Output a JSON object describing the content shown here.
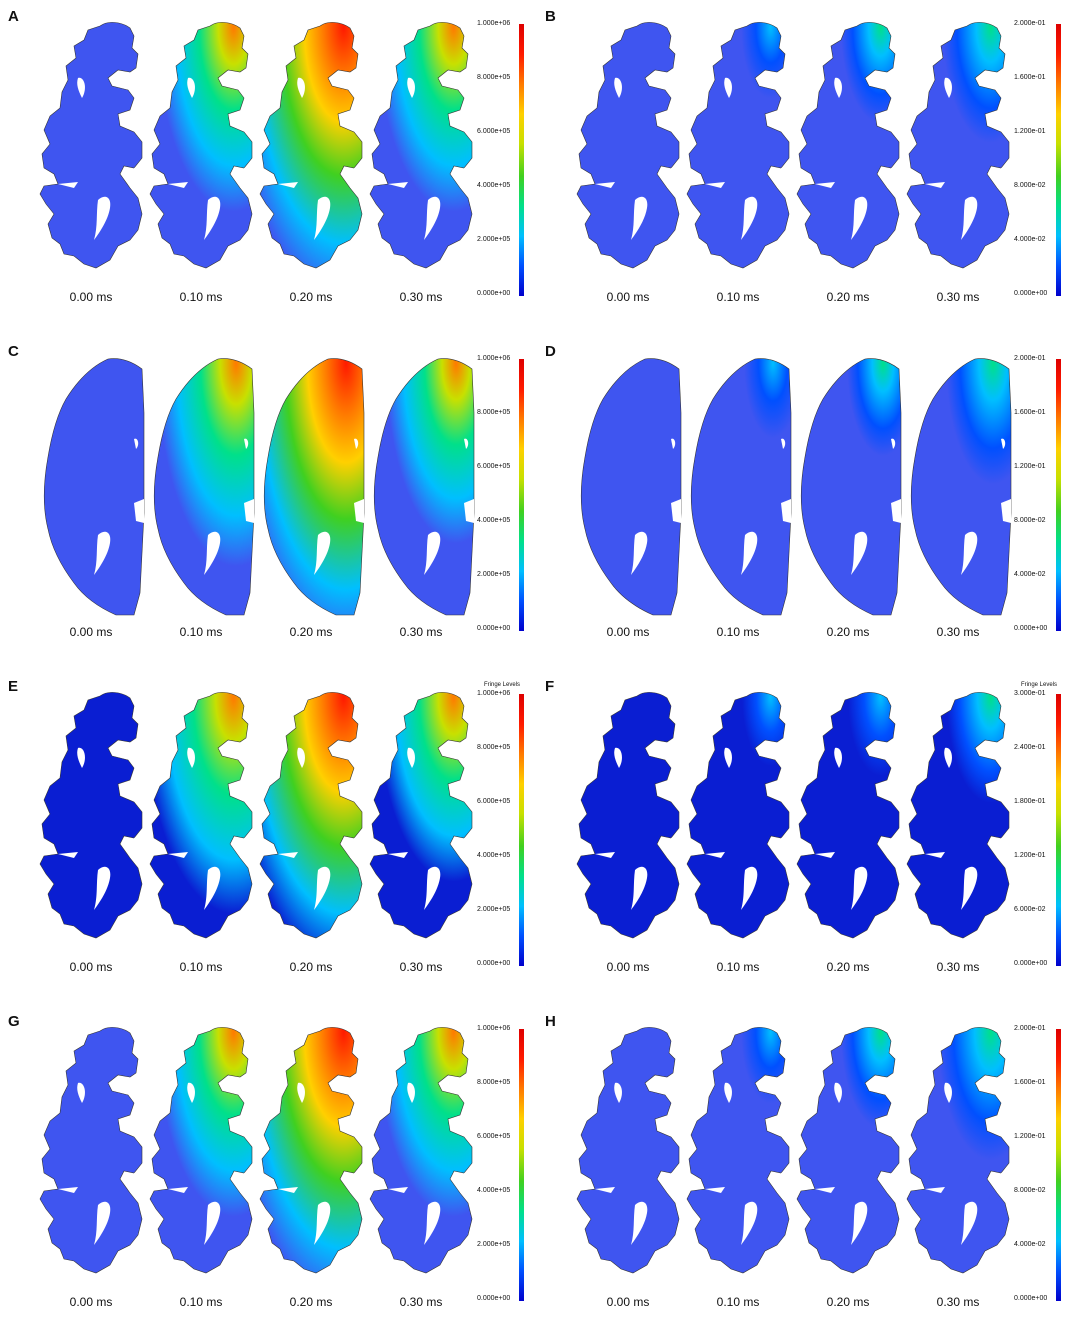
{
  "time_labels": [
    "0.00 ms",
    "0.10 ms",
    "0.20 ms",
    "0.30 ms"
  ],
  "colormap": [
    "#0000cc",
    "#0050ff",
    "#00bfff",
    "#00e08a",
    "#40d020",
    "#c8e000",
    "#ffd000",
    "#ff7a00",
    "#ff1a00",
    "#dd0000"
  ],
  "panels": [
    {
      "letter": "A",
      "shape": "folded",
      "base_color": "#3f55f0",
      "fringe_title": "",
      "scale_ticks": [
        "1.000e+06",
        "8.000e+05",
        "6.000e+05",
        "4.000e+05",
        "2.000e+05",
        "0.000e+00"
      ],
      "intensity": [
        0.0,
        0.55,
        0.95,
        0.55
      ]
    },
    {
      "letter": "B",
      "shape": "folded",
      "base_color": "#3f55f0",
      "fringe_title": "",
      "scale_ticks": [
        "2.000e-01",
        "1.600e-01",
        "1.200e-01",
        "8.000e-02",
        "4.000e-02",
        "0.000e+00"
      ],
      "intensity": [
        0.0,
        0.05,
        0.15,
        0.25
      ]
    },
    {
      "letter": "C",
      "shape": "smooth",
      "base_color": "#3f55f0",
      "fringe_title": "",
      "scale_ticks": [
        "1.000e+06",
        "8.000e+05",
        "6.000e+05",
        "4.000e+05",
        "2.000e+05",
        "0.000e+00"
      ],
      "intensity": [
        0.0,
        0.6,
        0.95,
        0.5
      ]
    },
    {
      "letter": "D",
      "shape": "smooth",
      "base_color": "#3f55f0",
      "fringe_title": "",
      "scale_ticks": [
        "2.000e-01",
        "1.600e-01",
        "1.200e-01",
        "8.000e-02",
        "4.000e-02",
        "0.000e+00"
      ],
      "intensity": [
        0.0,
        0.05,
        0.12,
        0.25
      ]
    },
    {
      "letter": "E",
      "shape": "folded",
      "base_color": "#0a1ed2",
      "fringe_title": "Fringe Levels",
      "scale_ticks": [
        "1.000e+06",
        "8.000e+05",
        "6.000e+05",
        "4.000e+05",
        "2.000e+05",
        "0.000e+00"
      ],
      "intensity": [
        0.0,
        0.7,
        0.95,
        0.55
      ]
    },
    {
      "letter": "F",
      "shape": "folded",
      "base_color": "#0a1ed2",
      "fringe_title": "Fringe Levels",
      "scale_ticks": [
        "3.000e-01",
        "2.400e-01",
        "1.800e-01",
        "1.200e-01",
        "6.000e-02",
        "0.000e+00"
      ],
      "intensity": [
        0.0,
        0.03,
        0.08,
        0.2
      ]
    },
    {
      "letter": "G",
      "shape": "folded",
      "base_color": "#3f55f0",
      "fringe_title": "",
      "scale_ticks": [
        "1.000e+06",
        "8.000e+05",
        "6.000e+05",
        "4.000e+05",
        "2.000e+05",
        "0.000e+00"
      ],
      "intensity": [
        0.0,
        0.55,
        0.95,
        0.55
      ]
    },
    {
      "letter": "H",
      "shape": "folded",
      "base_color": "#3f55f0",
      "fringe_title": "",
      "scale_ticks": [
        "2.000e-01",
        "1.600e-01",
        "1.200e-01",
        "8.000e-02",
        "4.000e-02",
        "0.000e+00"
      ],
      "intensity": [
        0.0,
        0.05,
        0.15,
        0.3
      ]
    }
  ]
}
